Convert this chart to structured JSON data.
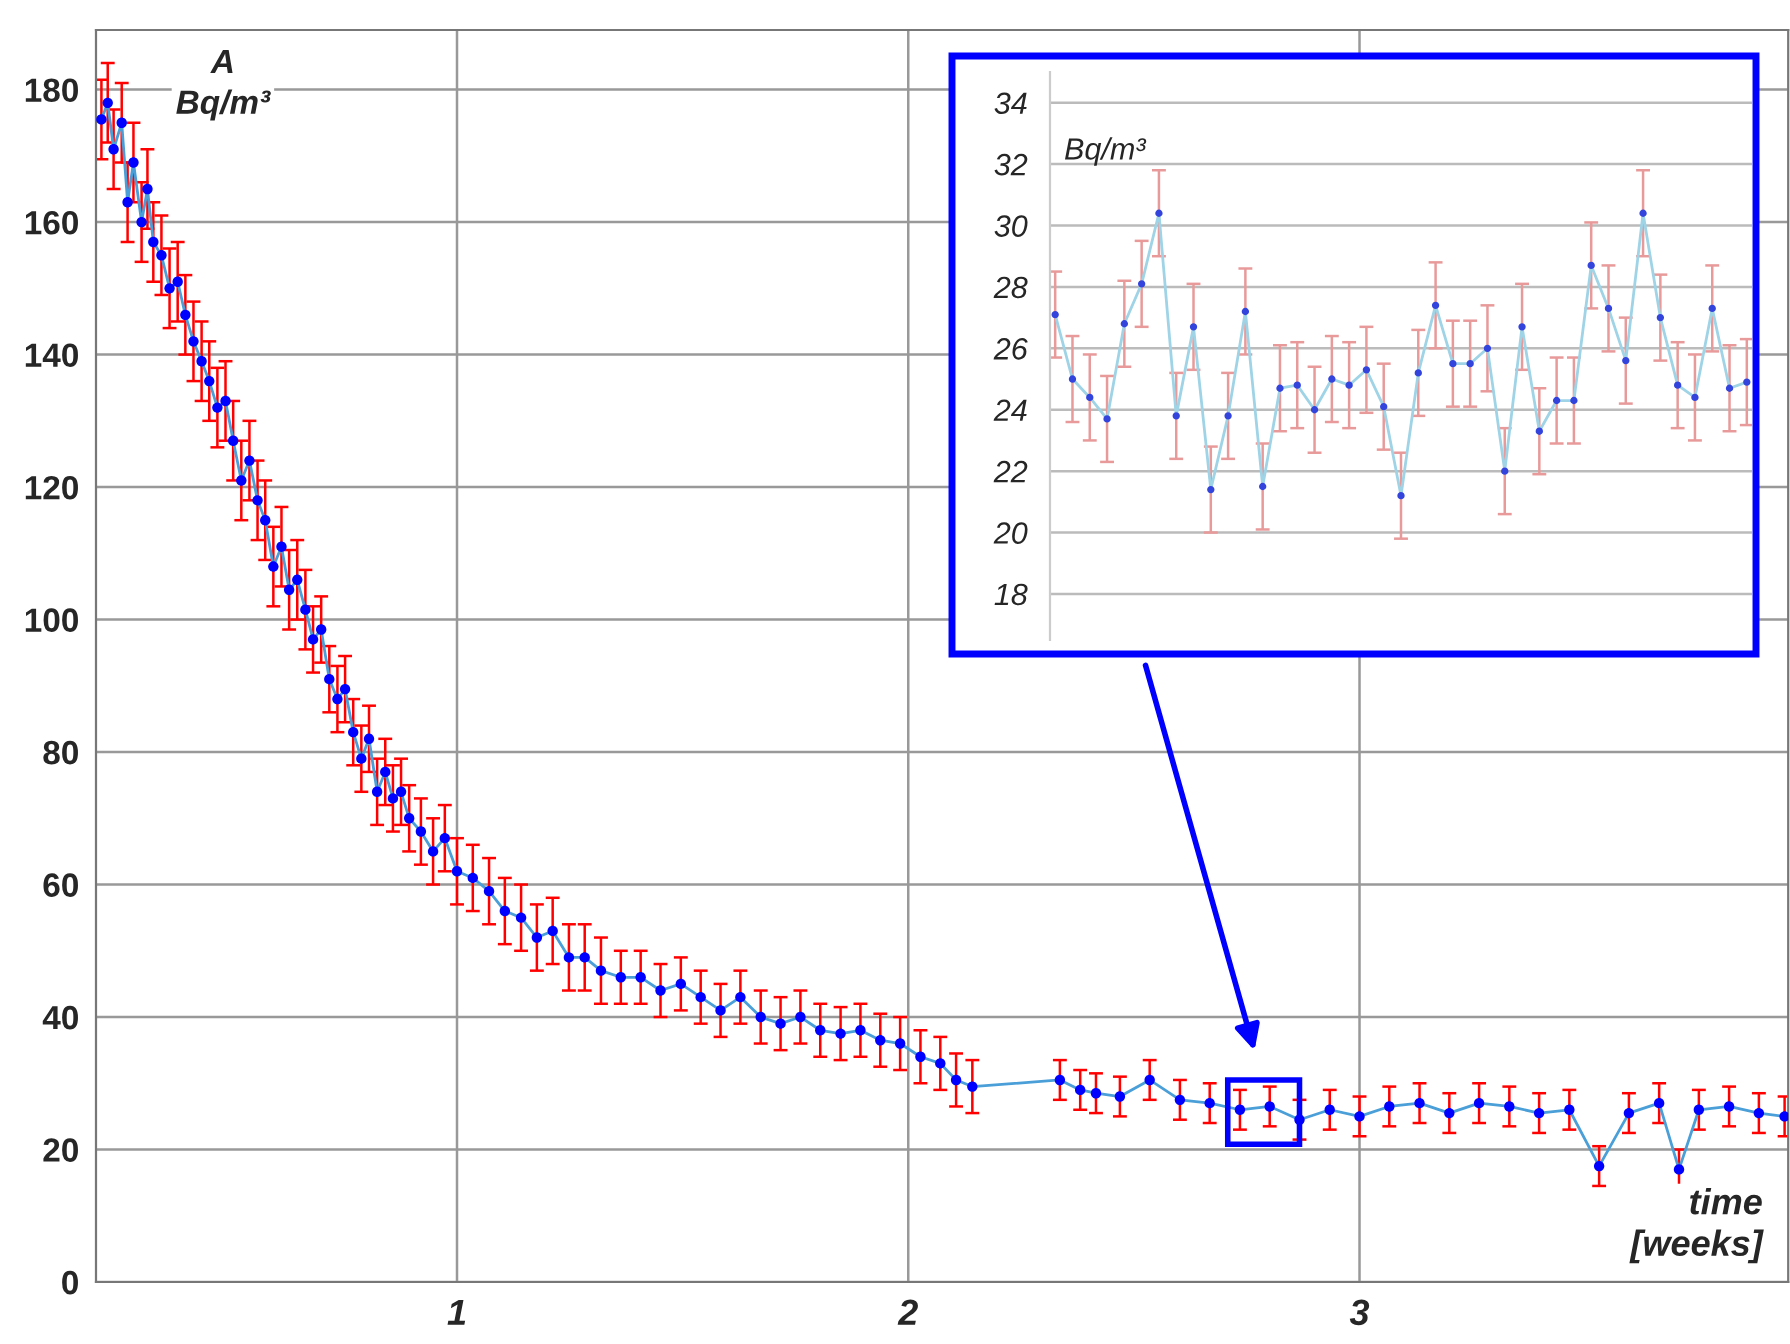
{
  "chart_data": [
    {
      "type": "line",
      "xlabel": "time\n[weeks]",
      "ylabel": "A\nBq/m³",
      "x": [
        0.212,
        0.226,
        0.239,
        0.257,
        0.27,
        0.283,
        0.301,
        0.314,
        0.327,
        0.345,
        0.363,
        0.381,
        0.398,
        0.416,
        0.434,
        0.451,
        0.469,
        0.487,
        0.504,
        0.522,
        0.54,
        0.558,
        0.575,
        0.593,
        0.611,
        0.628,
        0.646,
        0.664,
        0.681,
        0.699,
        0.717,
        0.735,
        0.752,
        0.77,
        0.788,
        0.805,
        0.823,
        0.841,
        0.858,
        0.876,
        0.894,
        0.92,
        0.947,
        0.973,
        1.0,
        1.035,
        1.071,
        1.106,
        1.142,
        1.177,
        1.212,
        1.248,
        1.283,
        1.319,
        1.363,
        1.407,
        1.451,
        1.496,
        1.54,
        1.584,
        1.628,
        1.673,
        1.717,
        1.761,
        1.805,
        1.85,
        1.894,
        1.938,
        1.982,
        2.027,
        2.071,
        2.106,
        2.142,
        2.336,
        2.381,
        2.416,
        2.469,
        2.535,
        2.602,
        2.668,
        2.735,
        2.801,
        2.867,
        2.934,
        3.0,
        3.066,
        3.133,
        3.199,
        3.265,
        3.332,
        3.398,
        3.465,
        3.531,
        3.597,
        3.664,
        3.708,
        3.752,
        3.819,
        3.885,
        3.942
      ],
      "series": [
        {
          "color": "#0000ff",
          "values": [
            175.5,
            178,
            171,
            175,
            163,
            169,
            160,
            165,
            157,
            155,
            150,
            151,
            146,
            142,
            139,
            136,
            132,
            133,
            127,
            121,
            124,
            118,
            115,
            108,
            111,
            104.5,
            106,
            101.5,
            97,
            98.5,
            91,
            88,
            89.5,
            83,
            79,
            82,
            74,
            77,
            73,
            74,
            70,
            68,
            65,
            67,
            62,
            61,
            59,
            56,
            55,
            52,
            53,
            49,
            49,
            47,
            46,
            46,
            44,
            45,
            43,
            41,
            43,
            40,
            39,
            40,
            38,
            37.5,
            38,
            36.5,
            36,
            34,
            33,
            30.5,
            29.5,
            30.5,
            29,
            28.5,
            28,
            30.5,
            27.5,
            27,
            26,
            26.5,
            24.5,
            26,
            25,
            26.5,
            27,
            25.5,
            27,
            26.5,
            25.5,
            26,
            17.5,
            25.5,
            27,
            17,
            26,
            26.5,
            25.5,
            25
          ],
          "errors": [
            6,
            6,
            6,
            6,
            6,
            6,
            6,
            6,
            6,
            6,
            6,
            6,
            6,
            6,
            6,
            6,
            6,
            6,
            6,
            6,
            6,
            6,
            6,
            6,
            6,
            6,
            6,
            6,
            5,
            5,
            5,
            5,
            5,
            5,
            5,
            5,
            5,
            5,
            5,
            5,
            5,
            5,
            5,
            5,
            5,
            5,
            5,
            5,
            5,
            5,
            5,
            5,
            5,
            5,
            4,
            4,
            4,
            4,
            4,
            4,
            4,
            4,
            4,
            4,
            4,
            4,
            4,
            4,
            4,
            4,
            4,
            4,
            4,
            3,
            3,
            3,
            3,
            3,
            3,
            3,
            3,
            3,
            3,
            3,
            3,
            3,
            3,
            3,
            3,
            3,
            3,
            3,
            3,
            3,
            3,
            3,
            3,
            3,
            3,
            3
          ]
        }
      ],
      "xlim": [
        0.2,
        3.95
      ],
      "ylim": [
        0,
        189
      ],
      "xticks": [
        1,
        2,
        3
      ],
      "yticks": [
        0,
        20,
        40,
        60,
        80,
        100,
        120,
        140,
        160,
        180
      ],
      "grid": true,
      "marker": "circle",
      "line_style": "solid"
    },
    {
      "type": "line",
      "ylabel": "Bq/m³",
      "categories": [
        null,
        null,
        null,
        null,
        null,
        null,
        null,
        null,
        null,
        null,
        null,
        null,
        null,
        null,
        null,
        null,
        null,
        null,
        null,
        null,
        null,
        null,
        null,
        null,
        null,
        null,
        null,
        null,
        null,
        null,
        null,
        null,
        null,
        null,
        null,
        null,
        null,
        null,
        null,
        null,
        null
      ],
      "series": [
        {
          "color": "#3344dd",
          "values": [
            27.1,
            25.0,
            24.4,
            23.7,
            26.8,
            28.1,
            30.4,
            23.8,
            26.7,
            21.4,
            23.8,
            27.2,
            21.5,
            24.7,
            24.8,
            24.0,
            25.0,
            24.8,
            25.3,
            24.1,
            21.2,
            25.2,
            27.4,
            25.5,
            25.5,
            26.0,
            22.0,
            26.7,
            23.3,
            24.3,
            24.3,
            28.7,
            27.3,
            25.6,
            30.4,
            27.0,
            24.8,
            24.4,
            27.3,
            24.7,
            24.9
          ],
          "errors": [
            1.4,
            1.4,
            1.4,
            1.4,
            1.4,
            1.4,
            1.4,
            1.4,
            1.4,
            1.4,
            1.4,
            1.4,
            1.4,
            1.4,
            1.4,
            1.4,
            1.4,
            1.4,
            1.4,
            1.4,
            1.4,
            1.4,
            1.4,
            1.4,
            1.4,
            1.4,
            1.4,
            1.4,
            1.4,
            1.4,
            1.4,
            1.4,
            1.4,
            1.4,
            1.4,
            1.4,
            1.4,
            1.4,
            1.4,
            1.4,
            1.4
          ]
        }
      ],
      "ylim": [
        16.5,
        35
      ],
      "yticks": [
        18,
        20,
        22,
        24,
        26,
        28,
        30,
        32,
        34
      ],
      "tick_labels": "y",
      "grid": "y",
      "marker": "circle",
      "line_style": "solid"
    }
  ]
}
